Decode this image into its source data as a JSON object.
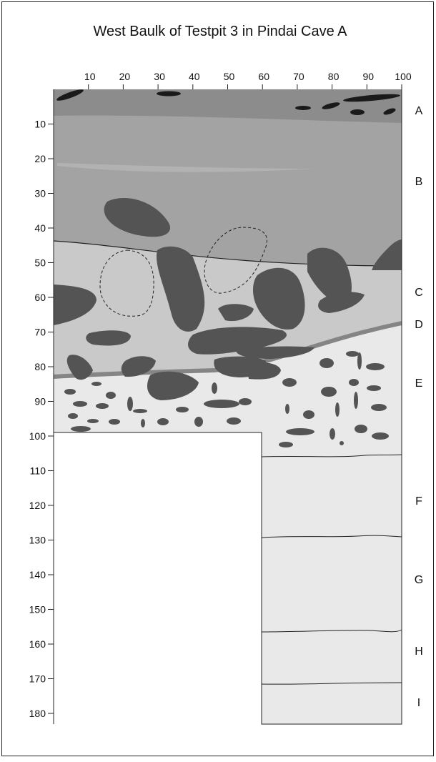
{
  "title": "West Baulk of Testpit 3 in Pindai Cave A",
  "top_scale": [
    10,
    20,
    30,
    40,
    50,
    60,
    70,
    80,
    90,
    100
  ],
  "depth_scale": [
    10,
    20,
    30,
    40,
    50,
    60,
    70,
    80,
    90,
    100,
    110,
    120,
    130,
    140,
    150,
    160,
    170,
    180
  ],
  "layers": [
    "A",
    "B",
    "C",
    "D",
    "E",
    "F",
    "G",
    "H",
    "I"
  ]
}
